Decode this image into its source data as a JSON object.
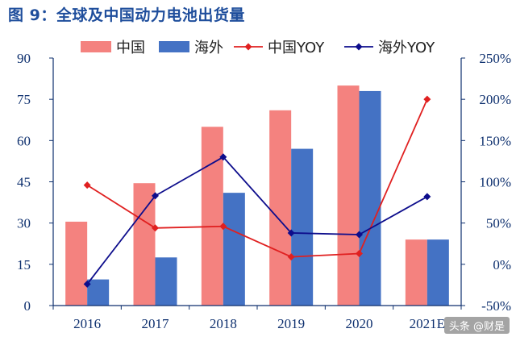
{
  "header": {
    "title": "图 9：全球及中国动力电池出货量"
  },
  "watermark": "头条 @财是",
  "colors": {
    "china_bar": "#f4827f",
    "overseas_bar": "#4472c4",
    "china_yoy": "#e02020",
    "overseas_yoy": "#0d0d8c",
    "axis": "#0d2f6e",
    "title": "#1f4e9c"
  },
  "chart_data": {
    "type": "bar",
    "categories": [
      "2016",
      "2017",
      "2018",
      "2019",
      "2020",
      "2021E"
    ],
    "series": [
      {
        "name": "中国",
        "type": "bar",
        "axis": "left",
        "values": [
          30.5,
          44.5,
          65,
          71,
          80,
          24
        ]
      },
      {
        "name": "海外",
        "type": "bar",
        "axis": "left",
        "values": [
          9.5,
          17.5,
          41,
          57,
          78,
          24
        ]
      },
      {
        "name": "中国YOY",
        "type": "line",
        "axis": "right",
        "marker": "diamond",
        "values": [
          96,
          44,
          46,
          9,
          13,
          200
        ]
      },
      {
        "name": "海外YOY",
        "type": "line",
        "axis": "right",
        "marker": "diamond",
        "values": [
          -24,
          83,
          130,
          38,
          36,
          82
        ]
      }
    ],
    "left_axis": {
      "ylim": [
        0,
        90
      ],
      "ticks": [
        "0",
        "15",
        "30",
        "45",
        "60",
        "75",
        "90"
      ]
    },
    "right_axis": {
      "ylim": [
        -50,
        250
      ],
      "ticks": [
        "-50%",
        "0%",
        "50%",
        "100%",
        "150%",
        "200%",
        "250%"
      ]
    },
    "legend_position": "top",
    "grid": false
  }
}
